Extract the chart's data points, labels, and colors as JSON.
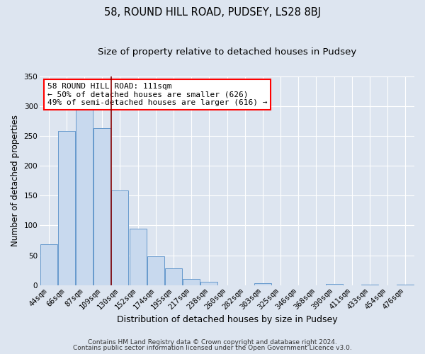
{
  "title_line1": "58, ROUND HILL ROAD, PUDSEY, LS28 8BJ",
  "title_line2": "Size of property relative to detached houses in Pudsey",
  "xlabel": "Distribution of detached houses by size in Pudsey",
  "ylabel": "Number of detached properties",
  "footer_line1": "Contains HM Land Registry data © Crown copyright and database right 2024.",
  "footer_line2": "Contains public sector information licensed under the Open Government Licence v3.0.",
  "bar_labels": [
    "44sqm",
    "66sqm",
    "87sqm",
    "109sqm",
    "130sqm",
    "152sqm",
    "174sqm",
    "195sqm",
    "217sqm",
    "238sqm",
    "260sqm",
    "282sqm",
    "303sqm",
    "325sqm",
    "346sqm",
    "368sqm",
    "390sqm",
    "411sqm",
    "433sqm",
    "454sqm",
    "476sqm"
  ],
  "bar_values": [
    68,
    258,
    295,
    263,
    159,
    95,
    48,
    28,
    10,
    6,
    0,
    0,
    3,
    0,
    0,
    0,
    2,
    0,
    1,
    0,
    1
  ],
  "bar_color": "#c8d9ee",
  "bar_edge_color": "#6699cc",
  "property_line_color": "#880000",
  "annotation_text": "58 ROUND HILL ROAD: 111sqm\n← 50% of detached houses are smaller (626)\n49% of semi-detached houses are larger (616) →",
  "annotation_box_color": "white",
  "annotation_box_edge_color": "red",
  "ylim_max": 350,
  "background_color": "#dde5f0",
  "grid_color": "white",
  "title_fontsize": 10.5,
  "subtitle_fontsize": 9.5,
  "xlabel_fontsize": 9,
  "ylabel_fontsize": 8.5,
  "tick_fontsize": 7.5,
  "annot_fontsize": 8,
  "footer_fontsize": 6.5
}
